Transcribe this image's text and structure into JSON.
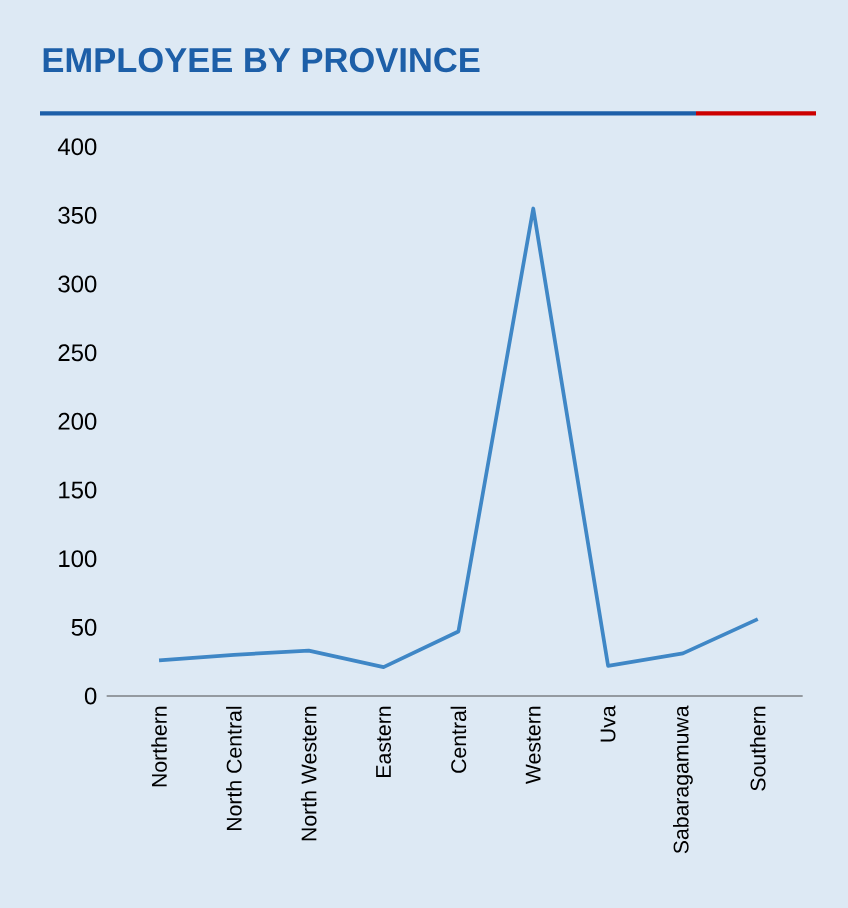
{
  "chart_data": {
    "type": "line",
    "title": "EMPLOYEE BY PROVINCE",
    "categories": [
      "Northern",
      "North Central",
      "North Western",
      "Eastern",
      "Central",
      "Western",
      "Uva",
      "Sabaragamuwa",
      "Southern"
    ],
    "values": [
      26,
      30,
      33,
      21,
      47,
      355,
      22,
      31,
      56
    ],
    "color": "#3f87c6",
    "ylim": [
      0,
      400
    ],
    "yticks": [
      0,
      50,
      100,
      150,
      200,
      250,
      300,
      350,
      400
    ],
    "grid": false,
    "marker": "none",
    "line_style": "solid"
  }
}
